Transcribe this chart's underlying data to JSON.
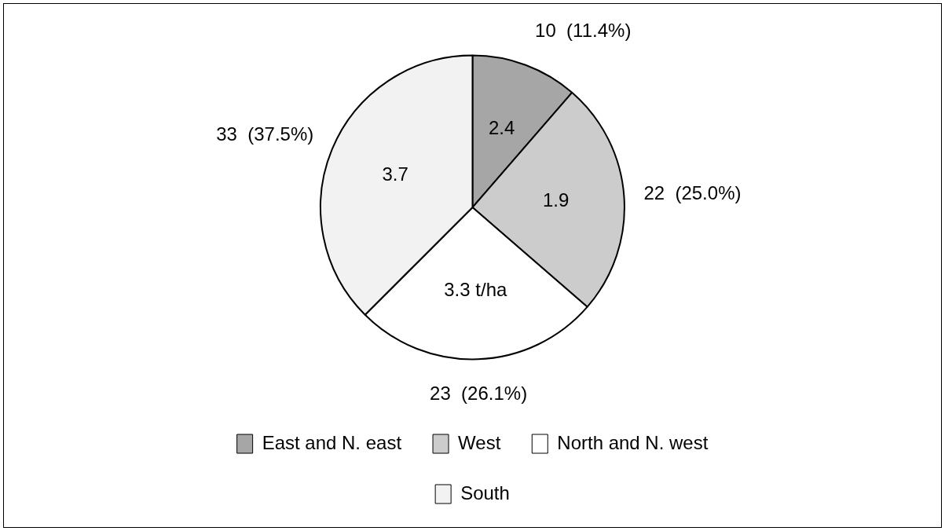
{
  "chart_data": {
    "type": "pie",
    "categories": [
      "East and N. east",
      "West",
      "North and N. west",
      "South"
    ],
    "values": [
      10,
      22,
      23,
      33
    ],
    "colors": [
      "#a6a6a6",
      "#cccccc",
      "#ffffff",
      "#f2f2f2"
    ],
    "value_labels": [
      "10  (11.4%)",
      "22  (25.0%)",
      "23  (26.1%)",
      "33  (37.5%)"
    ],
    "annotations": [
      "2.4",
      "1.9",
      "3.3 t/ha",
      "3.7"
    ],
    "legend": "bottom"
  }
}
